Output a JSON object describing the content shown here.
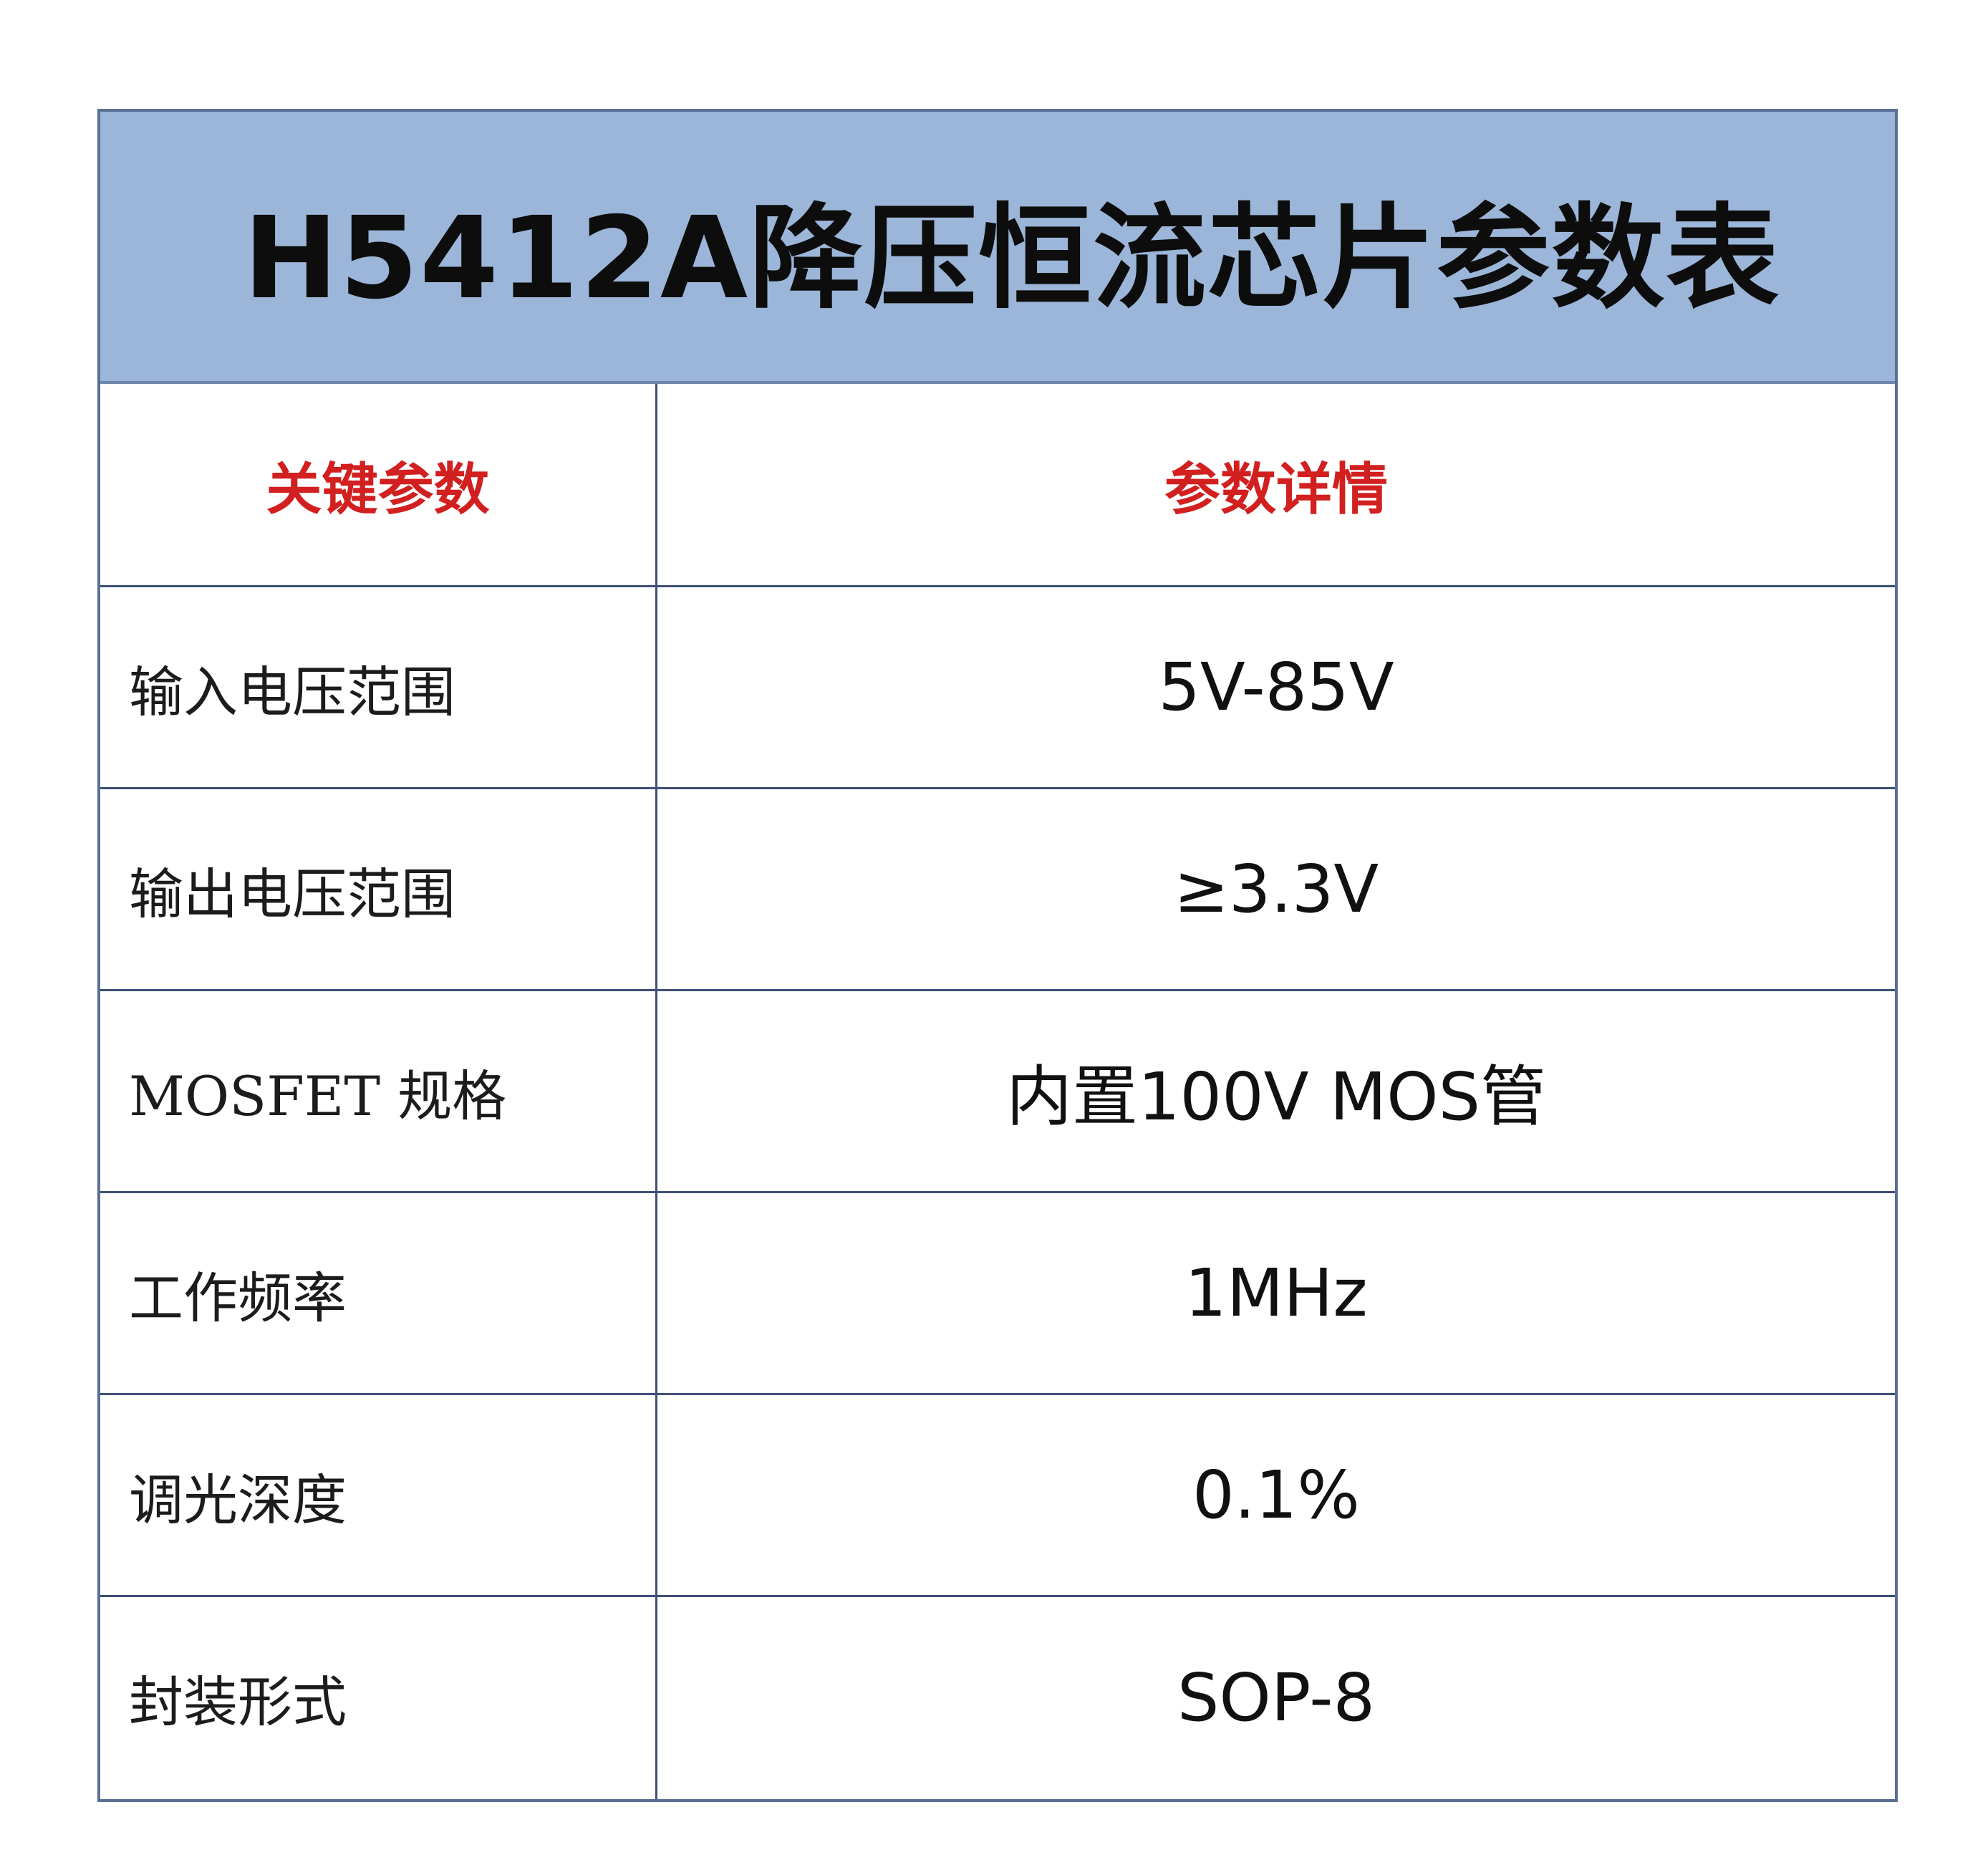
{
  "title": "H5412A降压恒流芯片参数表",
  "table": {
    "headers": {
      "key": "关键参数",
      "value": "参数详情"
    },
    "rows": [
      {
        "key": "输入电压范围",
        "value": "5V-85V"
      },
      {
        "key": "输出电压范围",
        "value": "≥3.3V"
      },
      {
        "key": "MOSFET 规格",
        "value": "内置100V MOS管"
      },
      {
        "key": "工作频率",
        "value": "1MHz"
      },
      {
        "key": "调光深度",
        "value": "0.1%"
      },
      {
        "key": "封装形式",
        "value": "SOP-8"
      }
    ]
  },
  "colors": {
    "banner": "#9bb6d8",
    "header_text": "#d21f1f",
    "border": "#3f5077"
  }
}
